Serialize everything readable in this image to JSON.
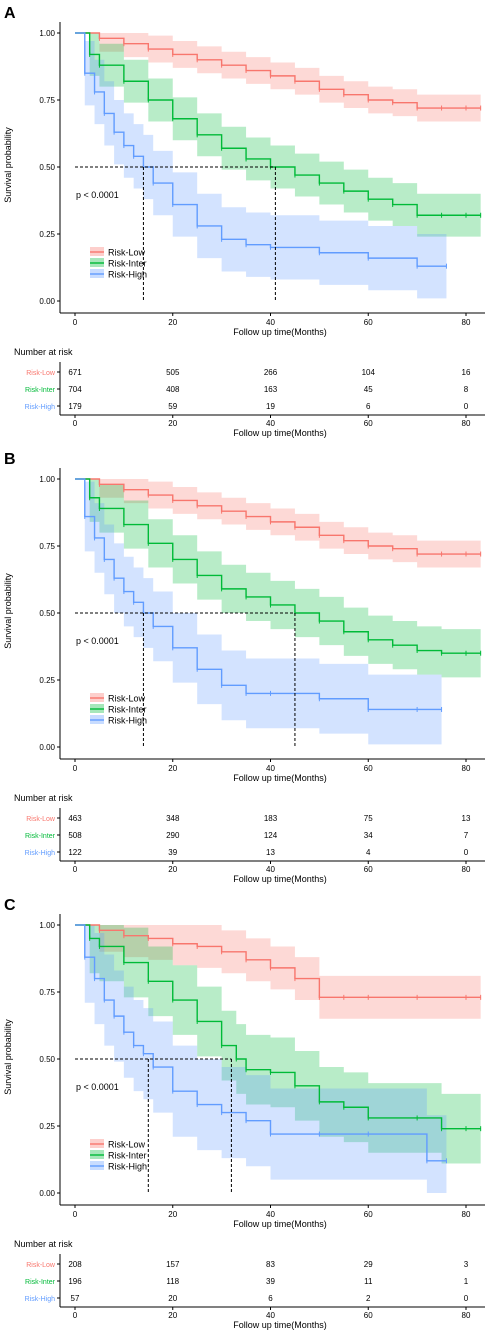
{
  "panels": [
    {
      "label": "A",
      "pvalue": "p < 0.0001",
      "ylabel": "Survival probability",
      "xlabel": "Follow up time(Months)",
      "risk_table_title": "Number at risk",
      "medians": [
        14,
        41
      ]
    },
    {
      "label": "B",
      "pvalue": "p < 0.0001",
      "ylabel": "Survival probability",
      "xlabel": "Follow up time(Months)",
      "risk_table_title": "Number at risk",
      "medians": [
        14,
        45
      ]
    },
    {
      "label": "C",
      "pvalue": "p < 0.0001",
      "ylabel": "Survival probability",
      "xlabel": "Follow up time(Months)",
      "risk_table_title": "Number at risk",
      "medians": [
        15,
        32
      ]
    }
  ],
  "chart_data": [
    {
      "type": "line",
      "xlabel": "Follow up time(Months)",
      "ylabel": "Survival probability",
      "xlim": [
        0,
        84
      ],
      "ylim": [
        0,
        1
      ],
      "xticks": [
        0,
        20,
        40,
        60,
        80
      ],
      "yticks": [
        "0.00",
        "0.25",
        "0.50",
        "0.75",
        "1.00"
      ],
      "legend_position": "bottom-left",
      "series": [
        {
          "name": "Risk-Low",
          "color": "#F8766D",
          "x": [
            0,
            5,
            10,
            15,
            20,
            25,
            30,
            35,
            40,
            45,
            50,
            55,
            60,
            65,
            70,
            75,
            80,
            83
          ],
          "y": [
            1.0,
            0.98,
            0.96,
            0.94,
            0.92,
            0.9,
            0.88,
            0.86,
            0.84,
            0.82,
            0.79,
            0.77,
            0.75,
            0.74,
            0.72,
            0.72,
            0.72,
            0.72
          ],
          "ci_width": 0.05
        },
        {
          "name": "Risk-Inter",
          "color": "#00BA38",
          "x": [
            0,
            3,
            5,
            10,
            15,
            20,
            25,
            30,
            35,
            40,
            45,
            50,
            55,
            60,
            65,
            70,
            75,
            80,
            83
          ],
          "y": [
            1.0,
            0.92,
            0.88,
            0.82,
            0.75,
            0.68,
            0.62,
            0.57,
            0.53,
            0.5,
            0.47,
            0.44,
            0.41,
            0.38,
            0.36,
            0.32,
            0.32,
            0.32,
            0.32
          ],
          "ci_width": 0.08
        },
        {
          "name": "Risk-High",
          "color": "#619CFF",
          "x": [
            0,
            2,
            4,
            6,
            8,
            10,
            12,
            14,
            16,
            20,
            25,
            30,
            35,
            40,
            50,
            60,
            70,
            76
          ],
          "y": [
            1.0,
            0.85,
            0.78,
            0.7,
            0.63,
            0.58,
            0.54,
            0.5,
            0.44,
            0.36,
            0.28,
            0.23,
            0.21,
            0.2,
            0.18,
            0.16,
            0.13,
            0.13
          ],
          "ci_width": 0.12
        }
      ],
      "risk_table": {
        "title": "Number at risk",
        "times": [
          0,
          20,
          40,
          60,
          80
        ],
        "rows": [
          {
            "name": "Risk-Low",
            "color": "#F8766D",
            "values": [
              "671",
              "505",
              "266",
              "104",
              "16"
            ]
          },
          {
            "name": "Risk-Inter",
            "color": "#00BA38",
            "values": [
              "704",
              "408",
              "163",
              "45",
              "8"
            ]
          },
          {
            "name": "Risk-High",
            "color": "#619CFF",
            "values": [
              "179",
              "59",
              "19",
              "6",
              "0"
            ]
          }
        ]
      }
    },
    {
      "type": "line",
      "xlabel": "Follow up time(Months)",
      "ylabel": "Survival probability",
      "xlim": [
        0,
        84
      ],
      "ylim": [
        0,
        1
      ],
      "xticks": [
        0,
        20,
        40,
        60,
        80
      ],
      "yticks": [
        "0.00",
        "0.25",
        "0.50",
        "0.75",
        "1.00"
      ],
      "legend_position": "bottom-left",
      "series": [
        {
          "name": "Risk-Low",
          "color": "#F8766D",
          "x": [
            0,
            5,
            10,
            15,
            20,
            25,
            30,
            35,
            40,
            45,
            50,
            55,
            60,
            65,
            70,
            75,
            80,
            83
          ],
          "y": [
            1.0,
            0.98,
            0.96,
            0.94,
            0.92,
            0.9,
            0.88,
            0.86,
            0.84,
            0.82,
            0.79,
            0.77,
            0.75,
            0.74,
            0.72,
            0.72,
            0.72,
            0.72
          ],
          "ci_width": 0.05
        },
        {
          "name": "Risk-Inter",
          "color": "#00BA38",
          "x": [
            0,
            3,
            5,
            10,
            15,
            20,
            25,
            30,
            35,
            40,
            45,
            50,
            55,
            60,
            65,
            70,
            75,
            80,
            83
          ],
          "y": [
            1.0,
            0.93,
            0.89,
            0.83,
            0.76,
            0.7,
            0.64,
            0.59,
            0.56,
            0.53,
            0.5,
            0.47,
            0.43,
            0.4,
            0.38,
            0.36,
            0.35,
            0.35,
            0.35
          ],
          "ci_width": 0.09
        },
        {
          "name": "Risk-High",
          "color": "#619CFF",
          "x": [
            0,
            2,
            4,
            6,
            8,
            10,
            12,
            14,
            16,
            20,
            25,
            30,
            35,
            40,
            50,
            60,
            70,
            75
          ],
          "y": [
            1.0,
            0.86,
            0.78,
            0.7,
            0.63,
            0.58,
            0.54,
            0.5,
            0.45,
            0.37,
            0.29,
            0.23,
            0.2,
            0.2,
            0.18,
            0.14,
            0.14,
            0.14
          ],
          "ci_width": 0.13
        }
      ],
      "risk_table": {
        "title": "Number at risk",
        "times": [
          0,
          20,
          40,
          60,
          80
        ],
        "rows": [
          {
            "name": "Risk-Low",
            "color": "#F8766D",
            "values": [
              "463",
              "348",
              "183",
              "75",
              "13"
            ]
          },
          {
            "name": "Risk-Inter",
            "color": "#00BA38",
            "values": [
              "508",
              "290",
              "124",
              "34",
              "7"
            ]
          },
          {
            "name": "Risk-High",
            "color": "#619CFF",
            "values": [
              "122",
              "39",
              "13",
              "4",
              "0"
            ]
          }
        ]
      }
    },
    {
      "type": "line",
      "xlabel": "Follow up time(Months)",
      "ylabel": "Survival probability",
      "xlim": [
        0,
        84
      ],
      "ylim": [
        0,
        1
      ],
      "xticks": [
        0,
        20,
        40,
        60,
        80
      ],
      "yticks": [
        "0.00",
        "0.25",
        "0.50",
        "0.75",
        "1.00"
      ],
      "legend_position": "bottom-left",
      "series": [
        {
          "name": "Risk-Low",
          "color": "#F8766D",
          "x": [
            0,
            5,
            10,
            15,
            20,
            25,
            30,
            35,
            40,
            45,
            50,
            55,
            60,
            70,
            80,
            83
          ],
          "y": [
            1.0,
            0.98,
            0.96,
            0.95,
            0.93,
            0.92,
            0.9,
            0.87,
            0.84,
            0.8,
            0.73,
            0.73,
            0.73,
            0.73,
            0.73,
            0.73
          ],
          "ci_width": 0.08
        },
        {
          "name": "Risk-Inter",
          "color": "#00BA38",
          "x": [
            0,
            3,
            5,
            10,
            15,
            20,
            25,
            30,
            33,
            35,
            40,
            45,
            50,
            55,
            60,
            70,
            75,
            80,
            83
          ],
          "y": [
            1.0,
            0.95,
            0.92,
            0.86,
            0.79,
            0.72,
            0.64,
            0.55,
            0.5,
            0.46,
            0.45,
            0.4,
            0.34,
            0.32,
            0.28,
            0.28,
            0.24,
            0.24,
            0.24
          ],
          "ci_width": 0.13
        },
        {
          "name": "Risk-High",
          "color": "#619CFF",
          "x": [
            0,
            2,
            4,
            6,
            8,
            10,
            12,
            14,
            16,
            20,
            25,
            30,
            35,
            40,
            50,
            60,
            72,
            76
          ],
          "y": [
            1.0,
            0.88,
            0.8,
            0.72,
            0.66,
            0.6,
            0.55,
            0.52,
            0.47,
            0.38,
            0.33,
            0.3,
            0.27,
            0.22,
            0.22,
            0.22,
            0.12,
            0.12
          ],
          "ci_width": 0.17
        }
      ],
      "risk_table": {
        "title": "Number at risk",
        "times": [
          0,
          20,
          40,
          60,
          80
        ],
        "rows": [
          {
            "name": "Risk-Low",
            "color": "#F8766D",
            "values": [
              "208",
              "157",
              "83",
              "29",
              "3"
            ]
          },
          {
            "name": "Risk-Inter",
            "color": "#00BA38",
            "values": [
              "196",
              "118",
              "39",
              "11",
              "1"
            ]
          },
          {
            "name": "Risk-High",
            "color": "#619CFF",
            "values": [
              "57",
              "20",
              "6",
              "2",
              "0"
            ]
          }
        ]
      }
    }
  ]
}
